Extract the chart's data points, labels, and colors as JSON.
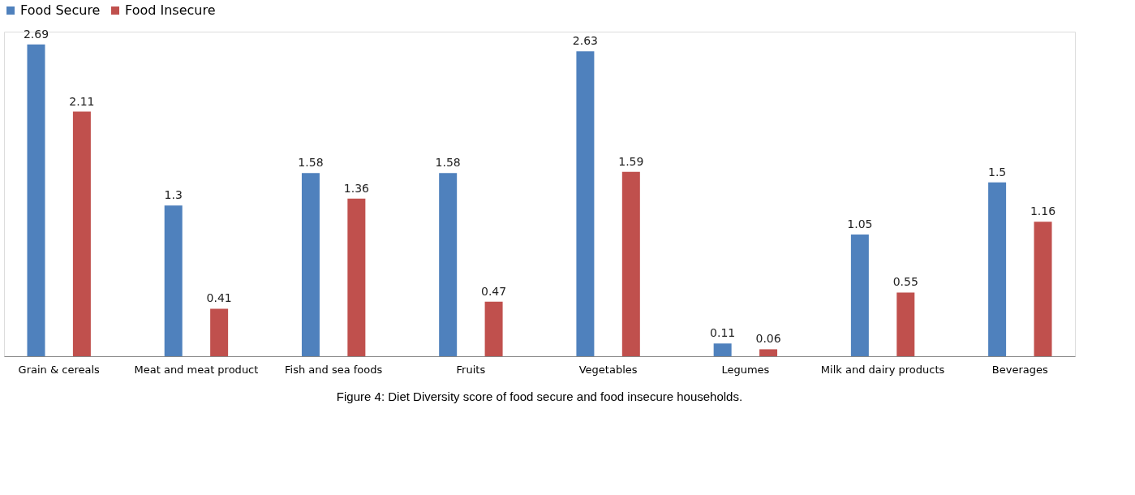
{
  "chart_data": {
    "type": "bar",
    "categories": [
      "Grain & cereals",
      "Meat and meat product",
      "Fish and sea foods",
      "Fruits",
      "Vegetables",
      "Legumes",
      "Milk and dairy products",
      "Beverages"
    ],
    "series": [
      {
        "name": "Food Secure",
        "color": "#4f81bd",
        "values": [
          2.69,
          1.3,
          1.58,
          1.58,
          2.63,
          0.11,
          1.05,
          1.5
        ]
      },
      {
        "name": "Food Insecure",
        "color": "#c0504d",
        "values": [
          2.11,
          0.41,
          1.36,
          0.47,
          1.59,
          0.06,
          0.55,
          1.16
        ]
      }
    ],
    "data_labels": true,
    "legend": "top",
    "grid": false,
    "annotations": [
      "Figure 4: Diet Diversity score of food secure and food insecure households."
    ]
  }
}
